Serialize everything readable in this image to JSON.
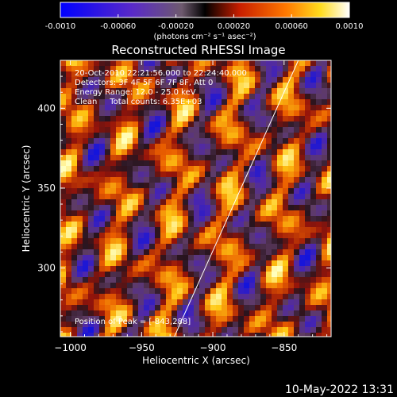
{
  "chart_data": {
    "type": "heatmap",
    "title": "Reconstructed RHESSI Image",
    "xlabel": "Heliocentric X (arcsec)",
    "ylabel": "Heliocentric Y (arcsec)",
    "xlim": [
      -1007,
      -817
    ],
    "ylim": [
      257,
      430
    ],
    "x_ticks": [
      -1000,
      -950,
      -900,
      -850
    ],
    "y_ticks": [
      300,
      350,
      400
    ],
    "colorbar": {
      "range": [
        -0.001,
        0.001
      ],
      "ticks": [
        "-0.0010",
        "-0.00060",
        "-0.00020",
        "0.00020",
        "0.00060",
        "0.0010"
      ],
      "units_label": "(photons cm⁻² s⁻¹ asec⁻²)"
    },
    "annotations": [
      "20-Oct-2010 22:21:56.000 to 22:24:40.000",
      "Detectors: 3F 4F 5F 6F 7F 8F, Att 0",
      "Energy Range: 12.0 - 25.0 keV",
      "Clean     Total counts: 6.35E+03"
    ],
    "peak_label": "Position of Peak = [-843,288]",
    "limb_line": {
      "x": [
        -927,
        -840
      ],
      "y": [
        257,
        430
      ]
    }
  },
  "footer_timestamp": "10-May-2022 13:31",
  "colors": {
    "background": "#000000",
    "text": "#ffffff"
  }
}
